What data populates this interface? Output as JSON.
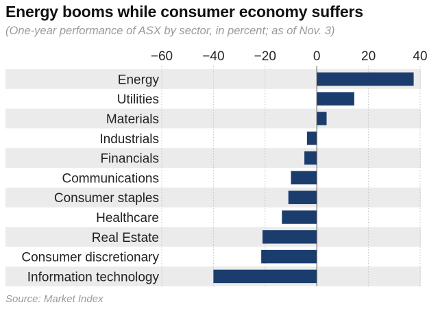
{
  "chart_data": {
    "type": "bar",
    "orientation": "horizontal",
    "title": "Energy booms while consumer economy suffers",
    "subtitle": "(One-year performance of ASX by sector, in percent; as of Nov. 3)",
    "source": "Source: Market Index",
    "categories": [
      "Energy",
      "Utilities",
      "Materials",
      "Industrials",
      "Financials",
      "Communications",
      "Consumer staples",
      "Healthcare",
      "Real Estate",
      "Consumer discretionary",
      "Information technology"
    ],
    "values": [
      37.5,
      14.5,
      3.8,
      -3.8,
      -4.8,
      -10,
      -11,
      -13.5,
      -21,
      -21.5,
      -40
    ],
    "xlim": [
      -60,
      40
    ],
    "xticks": [
      -60,
      -40,
      -20,
      0,
      20,
      40
    ],
    "xtick_labels": [
      "−60",
      "−40",
      "−20",
      "0",
      "20",
      "40"
    ],
    "xlabel": "",
    "ylabel": "",
    "bar_color": "#1b3d6d",
    "band_color": "#ebebeb",
    "grid": true
  }
}
